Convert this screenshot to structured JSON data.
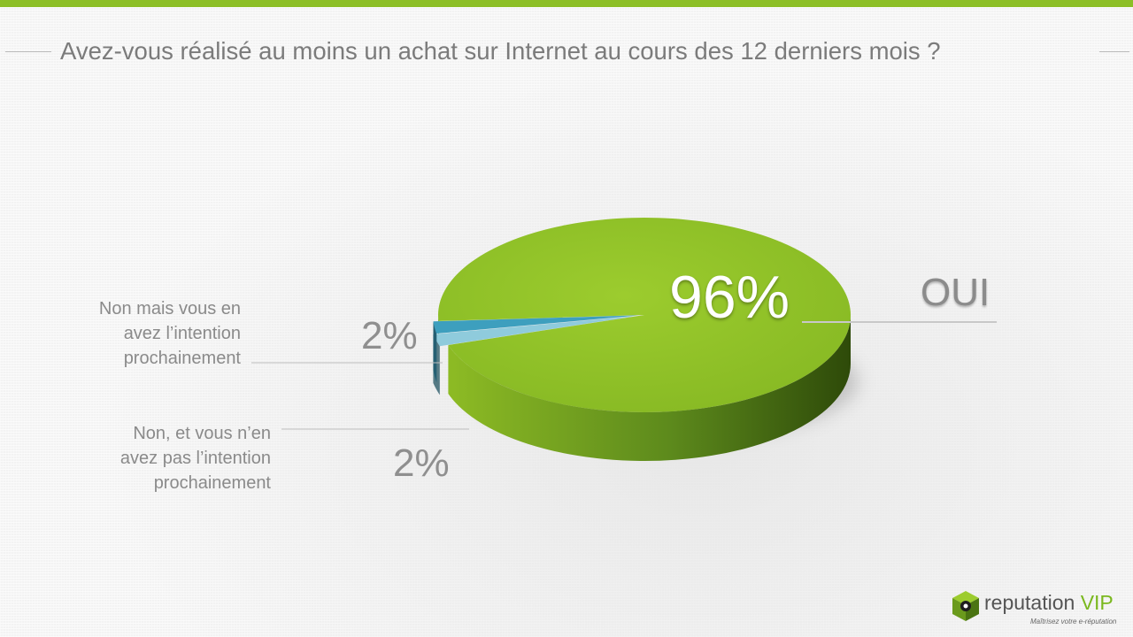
{
  "colors": {
    "accent_bar": "#8cbf26",
    "oui": "#8cbf26",
    "non_intention": "#8fcbdc",
    "non_pas_intention": "#3d9fbe"
  },
  "chart_data": {
    "type": "pie",
    "title": "Avez-vous réalisé au moins un achat sur Internet au cours des 12 derniers mois ?",
    "slices": [
      {
        "label": "OUI",
        "value": 96,
        "value_label": "96%",
        "color": "#8cbf26"
      },
      {
        "label": "Non mais vous en avez l’intention prochainement",
        "value": 2,
        "value_label": "2%",
        "color": "#8fcbdc"
      },
      {
        "label": "Non, et vous n’en avez pas l’intention prochainement",
        "value": 2,
        "value_label": "2%",
        "color": "#3d9fbe"
      }
    ]
  },
  "labels": {
    "oui": "OUI",
    "non_intention_lines": [
      "Non mais vous en",
      "avez l’intention",
      "prochainement"
    ],
    "non_pas_intention_lines": [
      "Non, et vous n’en",
      "avez pas l’intention",
      "prochainement"
    ]
  },
  "logo": {
    "icon": "cube-logo-icon",
    "name_main": "reputation ",
    "name_accent": "VIP",
    "tagline": "Maîtrisez votre e-réputation"
  }
}
